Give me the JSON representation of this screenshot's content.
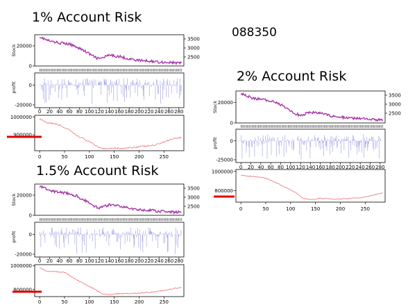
{
  "stock_code": "088350",
  "highlight_color": "#e00000",
  "colors": {
    "price": "#e377c2",
    "price_line": "#7b1fa2",
    "rate": "#5b5bd6",
    "equity": "#f08080",
    "axis": "#000000"
  },
  "panels": [
    {
      "title": "1% Account Risk",
      "ylabels": {
        "stock": "Stock",
        "profit": "profit"
      },
      "stock_ticks_left": [
        "20000",
        "0"
      ],
      "stock_ticks_right": [
        "3500",
        "3000",
        "2500"
      ],
      "profit_ticks": [
        "0",
        "-20000"
      ],
      "index_ticks": [
        "0",
        "20",
        "40",
        "60",
        "80",
        "100",
        "120",
        "140",
        "160",
        "180",
        "200",
        "220",
        "240",
        "260",
        "280"
      ],
      "equity_ticks_y": [
        "1000000",
        "900000"
      ],
      "equity_ticks_x": [
        "0",
        "50",
        "100",
        "150",
        "200",
        "250"
      ]
    },
    {
      "title": "2% Account Risk",
      "ylabels": {
        "stock": "Stock",
        "profit": "profit"
      },
      "stock_ticks_left": [
        "20000",
        "0"
      ],
      "stock_ticks_right": [
        "3500",
        "3000",
        "2500"
      ],
      "profit_ticks": [
        "0",
        "-25000"
      ],
      "index_ticks": [
        "0",
        "20",
        "40",
        "60",
        "80",
        "100",
        "120",
        "140",
        "160",
        "180",
        "200",
        "220",
        "240",
        "260",
        "280"
      ],
      "equity_ticks_y": [
        "1000000",
        "800000"
      ],
      "equity_ticks_x": [
        "0",
        "50",
        "100",
        "150",
        "200",
        "250"
      ]
    },
    {
      "title": "1.5% Account Risk",
      "ylabels": {
        "stock": "Stock",
        "profit": "profit"
      },
      "stock_ticks_left": [
        "20000",
        "0"
      ],
      "stock_ticks_right": [
        "3500",
        "3000",
        "2500"
      ],
      "profit_ticks": [
        "0",
        "-20000"
      ],
      "index_ticks": [
        "0",
        "20",
        "40",
        "60",
        "80",
        "100",
        "120",
        "140",
        "160",
        "180",
        "200",
        "220",
        "240",
        "260",
        "280"
      ],
      "equity_ticks_y": [
        "1000000",
        "800000"
      ],
      "equity_ticks_x": [
        "0",
        "50",
        "100",
        "150",
        "200",
        "250"
      ]
    }
  ],
  "chart_data": [
    {
      "type": "line",
      "title": "1% Account Risk",
      "series": [
        {
          "values": [
            29000,
            25500,
            24000,
            23000,
            21500,
            19000,
            15000,
            12000,
            9000,
            7000,
            10500,
            9500,
            7000,
            5500,
            5000,
            4000,
            3500,
            2800
          ]
        }
      ],
      "x": [
        0,
        15,
        25,
        40,
        60,
        75,
        90,
        100,
        110,
        120,
        140,
        160,
        180,
        200,
        220,
        240,
        260,
        285
      ],
      "equity_curve": {
        "x": [
          0,
          15,
          25,
          40,
          60,
          75,
          90,
          100,
          110,
          120,
          130,
          150,
          170,
          190,
          210,
          230,
          250,
          270,
          285
        ],
        "values": [
          990000,
          965000,
          965000,
          955000,
          925000,
          895000,
          875000,
          860000,
          845000,
          828000,
          822000,
          825000,
          822000,
          830000,
          835000,
          840000,
          860000,
          880000,
          885000
        ]
      },
      "ylim_stock": [
        0,
        31000
      ],
      "ylim_equity": [
        810000,
        1010000
      ],
      "xlim": [
        -10,
        290
      ]
    },
    {
      "type": "line",
      "title": "2% Account Risk",
      "series": [
        {
          "values": [
            29000,
            25500,
            24000,
            23000,
            21500,
            19000,
            15000,
            12000,
            9000,
            7000,
            10500,
            9500,
            7000,
            5500,
            5000,
            4000,
            3500,
            2800
          ]
        }
      ],
      "x": [
        0,
        15,
        25,
        40,
        60,
        75,
        90,
        100,
        110,
        120,
        140,
        160,
        180,
        200,
        220,
        240,
        260,
        285
      ],
      "equity_curve": {
        "x": [
          0,
          15,
          30,
          50,
          65,
          80,
          95,
          110,
          125,
          140,
          160,
          180,
          200,
          220,
          240,
          260,
          280,
          285
        ],
        "values": [
          960000,
          950000,
          945000,
          930000,
          895000,
          860000,
          820000,
          780000,
          720000,
          705000,
          720000,
          712000,
          712000,
          720000,
          725000,
          745000,
          770000,
          775000
        ]
      },
      "ylim_stock": [
        0,
        31000
      ],
      "ylim_equity": [
        680000,
        1020000
      ],
      "xlim": [
        -10,
        290
      ]
    },
    {
      "type": "line",
      "title": "1.5% Account Risk",
      "series": [
        {
          "values": [
            29000,
            25500,
            24000,
            23000,
            21500,
            19000,
            15000,
            12000,
            9000,
            7000,
            10500,
            9500,
            7000,
            5500,
            5000,
            4000,
            3500,
            2800
          ]
        }
      ],
      "x": [
        0,
        15,
        25,
        40,
        60,
        75,
        90,
        100,
        110,
        120,
        140,
        160,
        180,
        200,
        220,
        240,
        260,
        285
      ],
      "equity_curve": {
        "x": [
          0,
          15,
          30,
          50,
          65,
          80,
          95,
          110,
          125,
          140,
          160,
          180,
          200,
          220,
          240,
          260,
          280,
          285
        ],
        "values": [
          985000,
          955000,
          950000,
          945000,
          905000,
          870000,
          835000,
          805000,
          765000,
          755000,
          765000,
          765000,
          770000,
          775000,
          785000,
          800000,
          815000,
          815000
        ]
      },
      "ylim_stock": [
        0,
        31000
      ],
      "ylim_equity": [
        740000,
        1010000
      ],
      "xlim": [
        -10,
        290
      ]
    }
  ]
}
